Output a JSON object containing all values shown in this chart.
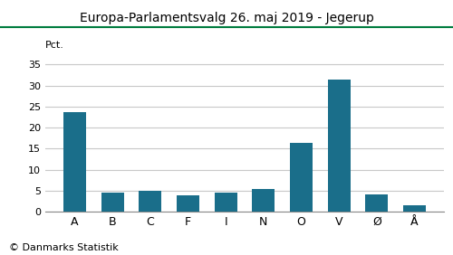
{
  "title": "Europa-Parlamentsvalg 26. maj 2019 - Jegerup",
  "categories": [
    "A",
    "B",
    "C",
    "F",
    "I",
    "N",
    "O",
    "V",
    "Ø",
    "Å"
  ],
  "values": [
    23.7,
    4.6,
    4.9,
    3.9,
    4.6,
    5.4,
    16.4,
    31.4,
    4.2,
    1.5
  ],
  "bar_color": "#1a6e8a",
  "ylabel": "Pct.",
  "ylim": [
    0,
    37
  ],
  "yticks": [
    0,
    5,
    10,
    15,
    20,
    25,
    30,
    35
  ],
  "background_color": "#ffffff",
  "title_color": "#000000",
  "title_fontsize": 10,
  "footer": "© Danmarks Statistik",
  "footer_fontsize": 8,
  "grid_color": "#c8c8c8",
  "top_line_color": "#007c3e",
  "xlabel_fontsize": 9,
  "ylabel_fontsize": 8,
  "tick_fontsize": 8
}
